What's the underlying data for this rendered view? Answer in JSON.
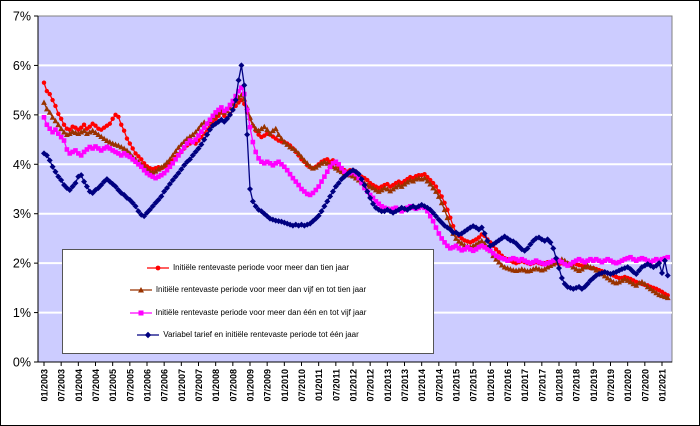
{
  "figure": {
    "kind": "line-chart",
    "outer_border_color": "#000000",
    "background": "#FFFFFF"
  },
  "plot": {
    "background": "#CCCCFF",
    "gridline_color": "#FFFFFF",
    "plot_border_color": "#808080",
    "axis_color": "#000000",
    "y_label_color": "#000000",
    "x_label_color": "#000000"
  },
  "y_axis": {
    "min": 0,
    "max": 7,
    "step": 1,
    "tick_labels": [
      "7%",
      "6%",
      "5%",
      "4%",
      "3%",
      "2%",
      "1%",
      "0%"
    ]
  },
  "x_axis": {
    "tick_labels": [
      "01/2003",
      "07/2003",
      "01/2004",
      "07/2004",
      "01/2005",
      "07/2005",
      "01/2006",
      "07/2006",
      "01/2007",
      "07/2007",
      "01/2008",
      "07/2008",
      "01/2009",
      "07/2009",
      "01/2010",
      "07/2010",
      "01/2011",
      "07/2011",
      "01/2012",
      "07/2012",
      "01/2013",
      "07/2013",
      "01/2014",
      "07/2014",
      "01/2015",
      "07/2015",
      "01/2016",
      "07/2016",
      "01/2017",
      "07/2017",
      "01/2018",
      "07/2018",
      "01/2019",
      "07/2019",
      "01/2020",
      "07/2020",
      "01/2021"
    ]
  },
  "legend": {
    "position": "inside-bottom-left",
    "background": "#FFFFFF",
    "border_color": "#555555"
  },
  "chart_data": {
    "type": "line",
    "frequency": "monthly",
    "start": "01/2003",
    "end": "03/2021",
    "ylim": [
      0,
      7
    ],
    "grid": "horizontal-white",
    "legend_position": "inside-bottom-left",
    "series": [
      {
        "name": "Initiële rentevaste periode voor meer dan tien jaar",
        "color": "#FF0000",
        "marker": "circle",
        "values": [
          5.65,
          5.48,
          5.42,
          5.3,
          5.18,
          5.02,
          4.92,
          4.8,
          4.72,
          4.7,
          4.76,
          4.74,
          4.7,
          4.74,
          4.8,
          4.72,
          4.76,
          4.82,
          4.78,
          4.72,
          4.7,
          4.74,
          4.78,
          4.82,
          4.92,
          5.0,
          4.96,
          4.8,
          4.68,
          4.52,
          4.42,
          4.32,
          4.22,
          4.16,
          4.1,
          4.02,
          3.96,
          3.92,
          3.9,
          3.92,
          3.94,
          3.92,
          3.95,
          3.98,
          4.02,
          4.08,
          4.15,
          4.2,
          4.25,
          4.32,
          4.38,
          4.42,
          4.45,
          4.42,
          4.48,
          4.55,
          4.62,
          4.7,
          4.78,
          4.85,
          4.92,
          4.98,
          5.05,
          4.98,
          4.94,
          5.02,
          5.1,
          5.18,
          5.25,
          5.3,
          5.22,
          5.05,
          4.92,
          4.78,
          4.68,
          4.6,
          4.55,
          4.58,
          4.62,
          4.6,
          4.56,
          4.52,
          4.48,
          4.46,
          4.45,
          4.42,
          4.38,
          4.32,
          4.25,
          4.18,
          4.1,
          4.05,
          3.98,
          3.94,
          3.92,
          3.95,
          4.0,
          4.05,
          4.08,
          4.1,
          4.05,
          4.08,
          4.02,
          3.96,
          3.92,
          3.88,
          3.85,
          3.88,
          3.88,
          3.85,
          3.8,
          3.75,
          3.72,
          3.68,
          3.62,
          3.58,
          3.55,
          3.52,
          3.55,
          3.58,
          3.6,
          3.55,
          3.58,
          3.62,
          3.65,
          3.62,
          3.66,
          3.7,
          3.74,
          3.72,
          3.76,
          3.78,
          3.78,
          3.8,
          3.74,
          3.68,
          3.62,
          3.55,
          3.45,
          3.35,
          3.22,
          3.08,
          2.92,
          2.75,
          2.62,
          2.55,
          2.5,
          2.46,
          2.44,
          2.42,
          2.45,
          2.48,
          2.52,
          2.58,
          2.55,
          2.48,
          2.42,
          2.35,
          2.28,
          2.22,
          2.15,
          2.1,
          2.08,
          2.05,
          2.02,
          2.0,
          2.02,
          2.04,
          2.02,
          2.0,
          1.98,
          2.0,
          2.02,
          2.0,
          1.98,
          2.0,
          2.02,
          2.0,
          1.98,
          2.0,
          1.98,
          2.0,
          2.02,
          2.0,
          1.98,
          2.0,
          1.98,
          1.96,
          1.95,
          1.94,
          1.92,
          1.9,
          1.9,
          1.88,
          1.86,
          1.84,
          1.82,
          1.8,
          1.78,
          1.75,
          1.72,
          1.7,
          1.7,
          1.72,
          1.7,
          1.68,
          1.65,
          1.62,
          1.6,
          1.58,
          1.56,
          1.55,
          1.52,
          1.5,
          1.48,
          1.45,
          1.42,
          1.38,
          1.35
        ]
      },
      {
        "name": "Initiële rentevaste periode voor meer dan vijf en tot tien jaar",
        "color": "#993300",
        "marker": "triangle",
        "values": [
          5.25,
          5.12,
          5.05,
          4.95,
          4.88,
          4.8,
          4.72,
          4.65,
          4.6,
          4.62,
          4.66,
          4.64,
          4.62,
          4.65,
          4.68,
          4.62,
          4.65,
          4.68,
          4.64,
          4.6,
          4.56,
          4.52,
          4.48,
          4.45,
          4.42,
          4.4,
          4.38,
          4.35,
          4.32,
          4.28,
          4.22,
          4.15,
          4.1,
          4.05,
          4.0,
          3.95,
          3.9,
          3.86,
          3.84,
          3.86,
          3.9,
          3.94,
          3.98,
          4.04,
          4.1,
          4.18,
          4.26,
          4.34,
          4.4,
          4.46,
          4.52,
          4.56,
          4.6,
          4.65,
          4.72,
          4.8,
          4.85,
          4.82,
          4.88,
          4.95,
          5.0,
          5.05,
          5.1,
          5.05,
          5.08,
          5.15,
          5.22,
          5.28,
          5.35,
          5.4,
          5.32,
          5.15,
          4.95,
          4.8,
          4.72,
          4.68,
          4.72,
          4.76,
          4.7,
          4.62,
          4.68,
          4.72,
          4.6,
          4.52,
          4.45,
          4.4,
          4.35,
          4.32,
          4.28,
          4.22,
          4.15,
          4.08,
          4.02,
          3.96,
          3.92,
          3.94,
          3.98,
          4.02,
          4.05,
          4.02,
          3.98,
          3.95,
          3.92,
          3.88,
          3.85,
          3.82,
          3.8,
          3.78,
          3.76,
          3.72,
          3.68,
          3.65,
          3.62,
          3.58,
          3.55,
          3.52,
          3.48,
          3.45,
          3.48,
          3.52,
          3.5,
          3.46,
          3.5,
          3.54,
          3.58,
          3.55,
          3.6,
          3.64,
          3.68,
          3.66,
          3.7,
          3.72,
          3.7,
          3.72,
          3.66,
          3.6,
          3.52,
          3.45,
          3.35,
          3.22,
          3.08,
          2.92,
          2.75,
          2.6,
          2.5,
          2.44,
          2.4,
          2.36,
          2.34,
          2.32,
          2.35,
          2.38,
          2.42,
          2.45,
          2.4,
          2.32,
          2.25,
          2.15,
          2.08,
          2.02,
          1.96,
          1.92,
          1.9,
          1.88,
          1.86,
          1.85,
          1.86,
          1.88,
          1.86,
          1.84,
          1.85,
          1.88,
          1.9,
          1.88,
          1.86,
          1.88,
          1.92,
          1.95,
          1.98,
          2.02,
          2.05,
          2.08,
          2.05,
          2.0,
          1.96,
          1.92,
          1.88,
          1.85,
          1.88,
          1.92,
          1.95,
          1.92,
          1.9,
          1.86,
          1.82,
          1.78,
          1.74,
          1.7,
          1.66,
          1.62,
          1.6,
          1.62,
          1.65,
          1.68,
          1.65,
          1.62,
          1.58,
          1.55,
          1.6,
          1.62,
          1.58,
          1.52,
          1.48,
          1.44,
          1.4,
          1.36,
          1.34,
          1.32,
          1.3
        ]
      },
      {
        "name": "Initiële rentevaste periode voor meer dan één en tot vijf jaar",
        "color": "#FF00FF",
        "marker": "square",
        "values": [
          4.95,
          4.8,
          4.72,
          4.65,
          4.7,
          4.62,
          4.55,
          4.48,
          4.3,
          4.22,
          4.25,
          4.28,
          4.22,
          4.18,
          4.25,
          4.3,
          4.35,
          4.32,
          4.36,
          4.32,
          4.28,
          4.32,
          4.35,
          4.32,
          4.28,
          4.25,
          4.22,
          4.18,
          4.22,
          4.18,
          4.15,
          4.1,
          4.05,
          4.0,
          3.95,
          3.88,
          3.82,
          3.78,
          3.75,
          3.72,
          3.75,
          3.78,
          3.82,
          3.88,
          3.95,
          4.02,
          4.1,
          4.18,
          4.26,
          4.34,
          4.42,
          4.48,
          4.45,
          4.5,
          4.58,
          4.66,
          4.74,
          4.82,
          4.9,
          4.98,
          5.05,
          5.1,
          5.15,
          5.08,
          5.12,
          5.2,
          5.28,
          5.38,
          5.48,
          5.55,
          5.42,
          5.1,
          4.75,
          4.45,
          4.25,
          4.12,
          4.05,
          4.02,
          4.05,
          4.02,
          3.98,
          4.02,
          4.05,
          4.0,
          3.95,
          3.88,
          3.8,
          3.72,
          3.65,
          3.58,
          3.5,
          3.45,
          3.4,
          3.38,
          3.42,
          3.48,
          3.55,
          3.65,
          3.75,
          3.85,
          3.95,
          4.02,
          4.05,
          4.0,
          3.92,
          3.85,
          3.8,
          3.82,
          3.85,
          3.8,
          3.72,
          3.62,
          3.52,
          3.45,
          3.38,
          3.32,
          3.25,
          3.2,
          3.15,
          3.12,
          3.1,
          3.08,
          3.1,
          3.12,
          3.08,
          3.05,
          3.08,
          3.12,
          3.15,
          3.12,
          3.1,
          3.12,
          3.15,
          3.12,
          3.05,
          2.95,
          2.85,
          2.72,
          2.6,
          2.5,
          2.42,
          2.35,
          2.3,
          2.32,
          2.35,
          2.3,
          2.26,
          2.28,
          2.32,
          2.28,
          2.25,
          2.28,
          2.32,
          2.35,
          2.32,
          2.28,
          2.25,
          2.2,
          2.15,
          2.12,
          2.1,
          2.08,
          2.05,
          2.08,
          2.1,
          2.08,
          2.05,
          2.08,
          2.05,
          2.02,
          2.0,
          2.02,
          2.05,
          2.02,
          2.0,
          1.98,
          2.0,
          2.02,
          2.05,
          2.08,
          2.05,
          2.02,
          1.98,
          1.95,
          1.98,
          2.02,
          2.05,
          2.08,
          2.05,
          2.02,
          2.05,
          2.08,
          2.05,
          2.08,
          2.05,
          2.02,
          2.05,
          2.08,
          2.05,
          2.02,
          2.0,
          2.02,
          2.05,
          2.08,
          2.1,
          2.12,
          2.08,
          2.05,
          2.08,
          2.1,
          2.08,
          2.05,
          2.02,
          2.05,
          2.08,
          2.05,
          2.08,
          2.1,
          2.12
        ]
      },
      {
        "name": "Variabel tarief en initiële rentevaste periode tot één jaar",
        "color": "#000080",
        "marker": "diamond",
        "values": [
          4.22,
          4.18,
          4.08,
          3.95,
          3.85,
          3.75,
          3.68,
          3.58,
          3.52,
          3.48,
          3.55,
          3.62,
          3.75,
          3.78,
          3.65,
          3.55,
          3.45,
          3.42,
          3.48,
          3.52,
          3.58,
          3.65,
          3.7,
          3.65,
          3.6,
          3.55,
          3.48,
          3.42,
          3.38,
          3.32,
          3.28,
          3.22,
          3.15,
          3.05,
          2.98,
          2.95,
          3.02,
          3.08,
          3.15,
          3.22,
          3.28,
          3.35,
          3.45,
          3.52,
          3.6,
          3.68,
          3.75,
          3.82,
          3.9,
          3.98,
          4.05,
          4.1,
          4.18,
          4.25,
          4.32,
          4.4,
          4.5,
          4.6,
          4.7,
          4.78,
          4.82,
          4.86,
          4.9,
          4.86,
          4.92,
          5.0,
          5.1,
          5.3,
          5.7,
          6.0,
          5.6,
          4.6,
          3.5,
          3.25,
          3.15,
          3.08,
          3.05,
          3.0,
          2.95,
          2.9,
          2.88,
          2.86,
          2.85,
          2.84,
          2.82,
          2.8,
          2.78,
          2.76,
          2.78,
          2.76,
          2.78,
          2.76,
          2.78,
          2.8,
          2.85,
          2.9,
          2.96,
          3.05,
          3.15,
          3.25,
          3.35,
          3.45,
          3.55,
          3.62,
          3.7,
          3.75,
          3.8,
          3.85,
          3.88,
          3.85,
          3.8,
          3.7,
          3.58,
          3.45,
          3.32,
          3.2,
          3.12,
          3.08,
          3.05,
          3.05,
          3.08,
          3.05,
          3.02,
          3.05,
          3.08,
          3.12,
          3.1,
          3.08,
          3.12,
          3.15,
          3.12,
          3.15,
          3.18,
          3.15,
          3.12,
          3.08,
          3.02,
          2.95,
          2.88,
          2.82,
          2.76,
          2.72,
          2.68,
          2.62,
          2.62,
          2.58,
          2.6,
          2.64,
          2.68,
          2.72,
          2.75,
          2.72,
          2.68,
          2.72,
          2.6,
          2.45,
          2.35,
          2.38,
          2.42,
          2.46,
          2.5,
          2.54,
          2.5,
          2.46,
          2.44,
          2.4,
          2.34,
          2.28,
          2.25,
          2.3,
          2.38,
          2.45,
          2.5,
          2.52,
          2.48,
          2.45,
          2.48,
          2.42,
          2.3,
          2.1,
          1.9,
          1.7,
          1.58,
          1.52,
          1.5,
          1.48,
          1.5,
          1.52,
          1.48,
          1.52,
          1.58,
          1.65,
          1.7,
          1.75,
          1.78,
          1.8,
          1.82,
          1.8,
          1.78,
          1.8,
          1.82,
          1.85,
          1.88,
          1.9,
          1.92,
          1.88,
          1.82,
          1.78,
          1.85,
          1.92,
          1.95,
          1.98,
          1.95,
          1.92,
          1.95,
          2.0,
          1.8,
          2.05,
          1.75
        ]
      }
    ]
  }
}
